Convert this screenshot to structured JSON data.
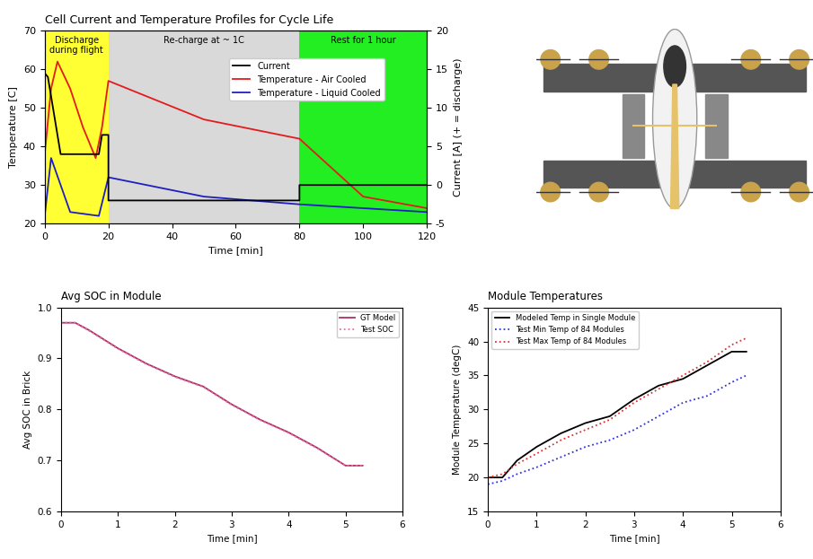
{
  "chart_data": [
    {
      "type": "line",
      "title": "Cell Current and Temperature Profiles for Cycle Life",
      "x_label": "Time [min]",
      "y_label": "Temperature [C]",
      "y2_label": "Current [A] (+ = discharge)",
      "xlim": [
        0,
        120
      ],
      "xticks": [
        0,
        20,
        40,
        60,
        80,
        100,
        120
      ],
      "ylim": [
        20,
        70
      ],
      "yticks": [
        20,
        30,
        40,
        50,
        60,
        70
      ],
      "y2lim": [
        -5,
        20
      ],
      "y2ticks": [
        -5,
        0,
        5,
        10,
        15,
        20
      ],
      "grid": false,
      "legend": "upper right",
      "regions": [
        {
          "label": "Discharge\nduring flight",
          "start": 0,
          "end": 20,
          "color": "#ffff33"
        },
        {
          "label": "Re-charge at ~ 1C",
          "start": 20,
          "end": 80,
          "color": "#d9d9d9"
        },
        {
          "label": "Rest for 1 hour",
          "start": 80,
          "end": 120,
          "color": "#22ee22"
        }
      ],
      "series": [
        {
          "name": "Current",
          "color": "#000000",
          "axis": "y2",
          "line_style": "solid",
          "x": [
            0,
            1,
            3,
            5,
            17,
            18,
            20,
            20,
            80,
            80,
            120
          ],
          "values": [
            14.5,
            14,
            9,
            4,
            4,
            6.5,
            6.5,
            -2,
            -2,
            0,
            0
          ]
        },
        {
          "name": "Temperature - Air Cooled",
          "color": "#e41a1c",
          "line_style": "solid",
          "x": [
            0,
            2,
            4,
            8,
            12,
            16,
            18,
            20,
            50,
            80,
            100,
            120
          ],
          "values": [
            38,
            55,
            62,
            55,
            45,
            37,
            45,
            57,
            47,
            42,
            27,
            24
          ]
        },
        {
          "name": "Temperature - Liquid Cooled",
          "color": "#1f1fbf",
          "line_style": "solid",
          "x": [
            0,
            2,
            5,
            8,
            17,
            20,
            50,
            80,
            100,
            120
          ],
          "values": [
            22,
            37,
            30,
            23,
            22,
            32,
            27,
            25,
            24,
            23
          ]
        }
      ]
    },
    {
      "type": "line",
      "title": "Avg SOC in Module",
      "x_label": "Time [min]",
      "y_label": "Avg SOC in Brick",
      "xlim": [
        0,
        6
      ],
      "xticks": [
        0,
        1,
        2,
        3,
        4,
        5,
        6
      ],
      "ylim": [
        0.6,
        1.0
      ],
      "yticks": [
        0.6,
        0.7,
        0.8,
        0.9,
        {
          "value": 1.0,
          "label": "1.0"
        }
      ],
      "grid": false,
      "legend": "upper right",
      "series": [
        {
          "name": "GT Model",
          "color": "#b0306a",
          "line_style": "solid",
          "x": [
            0,
            0.25,
            0.5,
            1,
            1.5,
            2,
            2.5,
            3,
            3.5,
            4,
            4.5,
            5,
            5.3
          ],
          "values": [
            0.97,
            0.97,
            0.955,
            0.92,
            0.89,
            0.865,
            0.845,
            0.81,
            0.78,
            0.755,
            0.725,
            0.69,
            0.69
          ]
        },
        {
          "name": "Test SOC",
          "color": "#e36fa0",
          "line_style": "dotted",
          "x": [
            0,
            0.25,
            0.5,
            1,
            1.5,
            2,
            2.5,
            3,
            3.5,
            4,
            4.5,
            5,
            5.3
          ],
          "values": [
            0.97,
            0.97,
            0.954,
            0.919,
            0.889,
            0.864,
            0.844,
            0.809,
            0.779,
            0.754,
            0.724,
            0.69,
            0.69
          ]
        }
      ]
    },
    {
      "type": "line",
      "title": "Module Temperatures",
      "x_label": "Time [min]",
      "y_label": "Module Temperature (degC)",
      "xlim": [
        0,
        6
      ],
      "xticks": [
        0,
        1,
        2,
        3,
        4,
        5,
        6
      ],
      "ylim": [
        15,
        45
      ],
      "yticks": [
        15,
        20,
        25,
        30,
        35,
        40,
        45
      ],
      "grid": false,
      "legend": "upper left",
      "series": [
        {
          "name": "Modeled Temp in Single Module",
          "color": "#000000",
          "line_style": "solid",
          "x": [
            0,
            0.3,
            0.6,
            1,
            1.5,
            2,
            2.5,
            3,
            3.5,
            4,
            4.5,
            5,
            5.3
          ],
          "values": [
            20,
            20,
            22.5,
            24.5,
            26.5,
            28,
            29,
            31.5,
            33.5,
            34.5,
            36.5,
            38.5,
            38.5
          ]
        },
        {
          "name": "Test Min Temp of 84 Modules",
          "color": "#3030e0",
          "line_style": "dotted",
          "x": [
            0,
            0.3,
            0.6,
            1,
            1.5,
            2,
            2.5,
            3,
            3.5,
            4,
            4.5,
            5,
            5.3
          ],
          "values": [
            19,
            19.5,
            20.5,
            21.5,
            23,
            24.5,
            25.5,
            27,
            29,
            31,
            32,
            34,
            35
          ]
        },
        {
          "name": "Test Max Temp of 84 Modules",
          "color": "#e03030",
          "line_style": "dotted",
          "x": [
            0,
            0.3,
            0.6,
            1,
            1.5,
            2,
            2.5,
            3,
            3.5,
            4,
            4.5,
            5,
            5.3
          ],
          "values": [
            20,
            20.5,
            22,
            23.5,
            25.5,
            27,
            28.5,
            31,
            33,
            35,
            37,
            39.5,
            40.5
          ]
        }
      ]
    }
  ]
}
